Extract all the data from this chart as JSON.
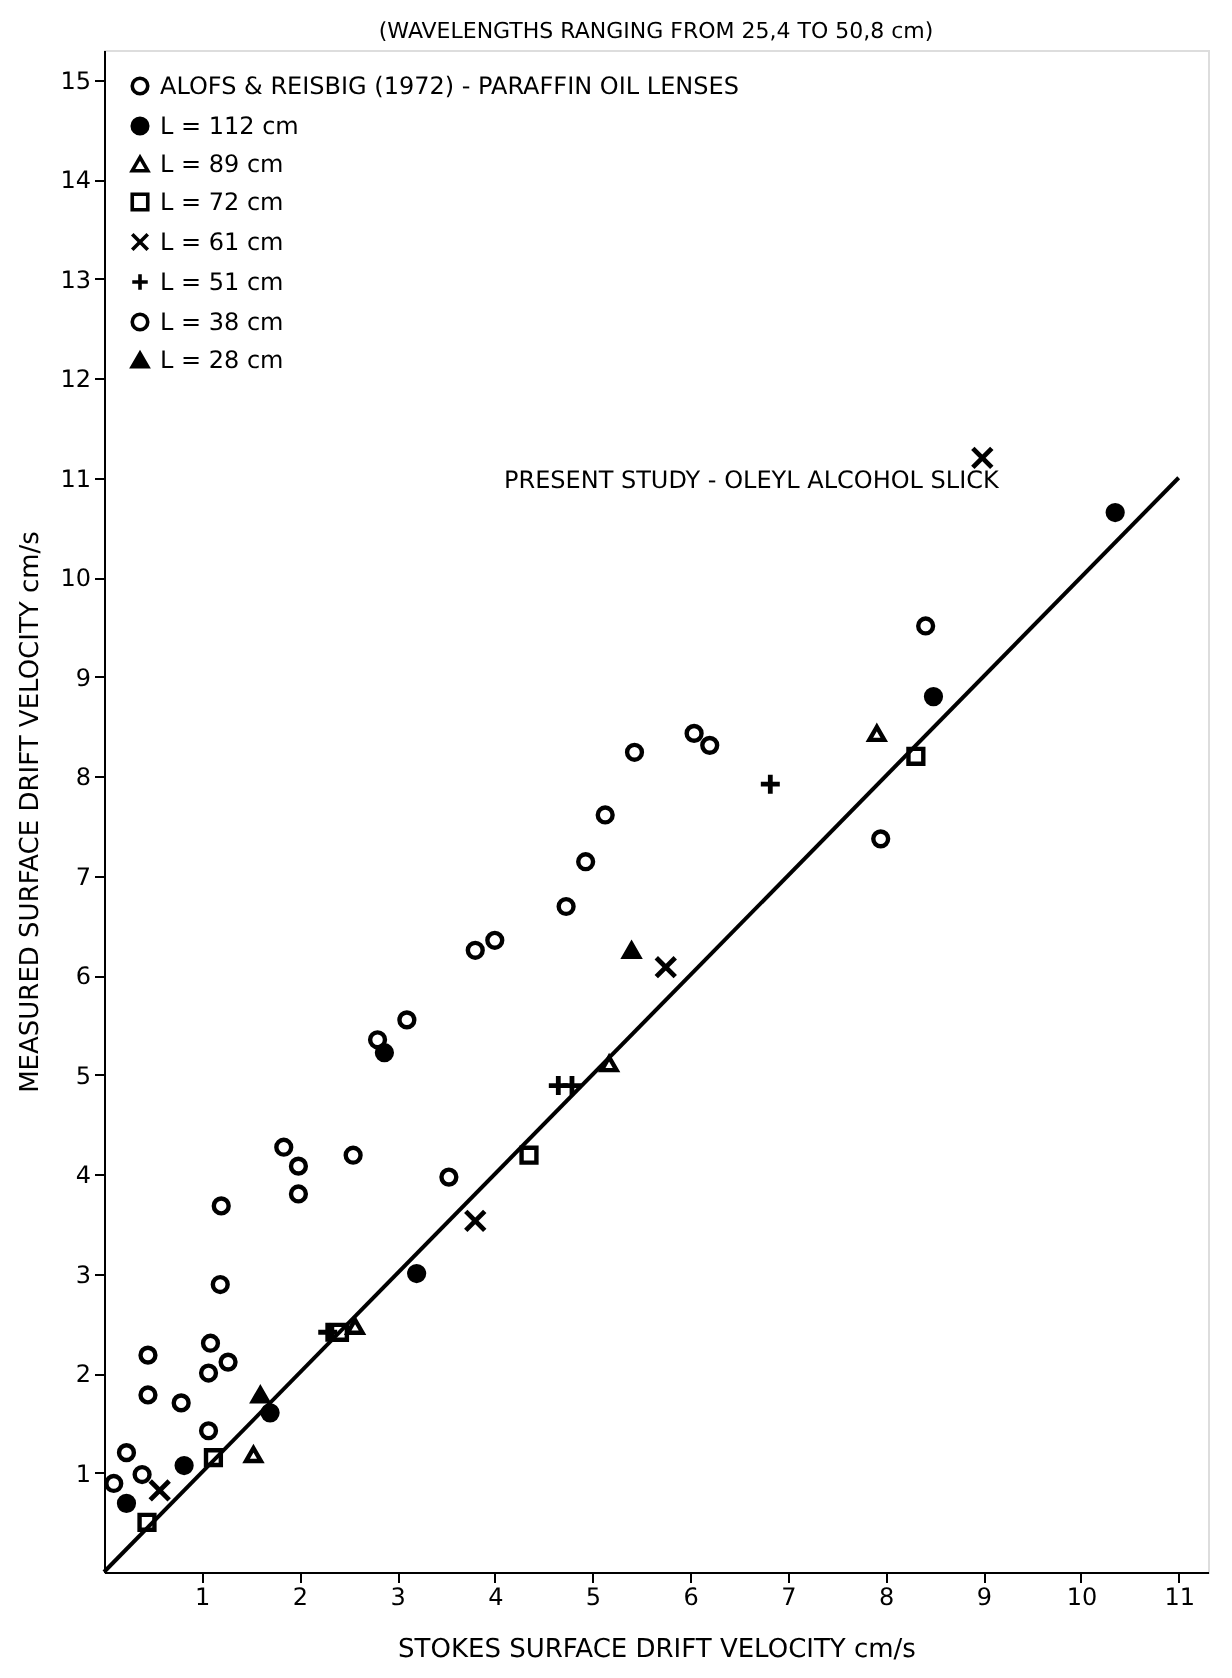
{
  "chart_data": {
    "type": "scatter",
    "title": "(WAVELENGTHS RANGING FROM 25,4 TO 50,8 cm)",
    "xlabel": "STOKES SURFACE DRIFT VELOCITY    cm/s",
    "ylabel": "MEASURED SURFACE DRIFT VELOCITY  cm/s",
    "xlim": [
      0,
      11.3
    ],
    "ylim": [
      0,
      15.3
    ],
    "xticks": [
      1,
      2,
      3,
      4,
      5,
      6,
      7,
      8,
      9,
      10,
      11
    ],
    "yticks": [
      1,
      2,
      3,
      4,
      5,
      6,
      7,
      8,
      9,
      10,
      11,
      12,
      13,
      14,
      15
    ],
    "grid": false,
    "legend": "top left",
    "annotations": [
      "PRESENT STUDY - OLEYL ALCOHOL SLICK"
    ],
    "series": [
      {
        "name": "ALOFS & REISBIG (1972) - PARAFFIN OIL LENSES",
        "color": "#000000",
        "marker": "circle",
        "x": [
          0.1,
          0.23,
          0.39,
          0.45,
          0.45,
          0.79,
          1.09,
          1.07,
          1.27,
          1.19,
          1.2,
          1.84,
          1.99,
          1.99,
          2.55,
          2.8,
          3.1,
          3.8,
          4.0,
          4.73,
          4.93,
          5.13,
          5.43,
          6.04,
          6.2
        ],
        "values": [
          0.89,
          1.2,
          0.98,
          2.18,
          1.78,
          1.7,
          2.3,
          2.0,
          2.11,
          2.89,
          3.68,
          4.27,
          4.08,
          3.8,
          4.19,
          5.35,
          5.55,
          6.25,
          6.35,
          6.69,
          7.14,
          7.61,
          8.24,
          8.43,
          8.31
        ]
      },
      {
        "name": "L = 112 cm",
        "color": "#000000",
        "marker": "circle_filled",
        "x": [
          0.23,
          0.82,
          1.7,
          3.2,
          2.87,
          8.49,
          10.35
        ],
        "values": [
          0.69,
          1.07,
          1.6,
          3.0,
          5.22,
          8.8,
          10.65
        ]
      },
      {
        "name": "L = 89 cm",
        "color": "#000000",
        "marker": "triangle",
        "x": [
          1.53,
          2.57,
          5.17,
          7.91
        ],
        "values": [
          1.18,
          2.47,
          5.11,
          8.43
        ]
      },
      {
        "name": "L = 72 cm",
        "color": "#000000",
        "marker": "square",
        "x": [
          0.44,
          1.12,
          2.41,
          4.35,
          8.31
        ],
        "values": [
          0.5,
          1.15,
          2.41,
          4.19,
          8.2
        ]
      },
      {
        "name": "L = 61 cm",
        "color": "#000000",
        "marker": "cross",
        "x": [
          0.57,
          3.8,
          5.75,
          8.99
        ],
        "values": [
          0.82,
          3.53,
          6.08,
          11.2
        ]
      },
      {
        "name": "L = 51 cm",
        "color": "#000000",
        "marker": "plus",
        "x": [
          2.29,
          4.65,
          4.79,
          6.82
        ],
        "values": [
          2.41,
          4.89,
          4.89,
          7.92
        ]
      },
      {
        "name": "L = 38 cm",
        "color": "#000000",
        "marker": "circle",
        "x": [
          1.07,
          3.53,
          7.95,
          8.41
        ],
        "values": [
          1.42,
          3.97,
          7.37,
          9.51
        ]
      },
      {
        "name": "L = 28 cm",
        "color": "#000000",
        "marker": "triangle_filled",
        "x": [
          1.6,
          5.4
        ],
        "values": [
          1.78,
          6.25
        ]
      },
      {
        "type": "line",
        "color": "#000000",
        "x": [
          0,
          11
        ],
        "values": [
          0,
          11
        ]
      }
    ]
  }
}
